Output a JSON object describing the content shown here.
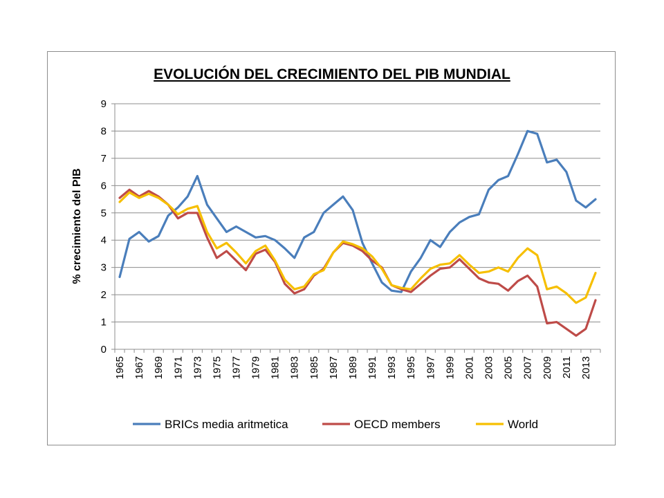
{
  "chart_data": {
    "type": "line",
    "title": "EVOLUCIÓN DEL CRECIMIENTO DEL PIB MUNDIAL",
    "ylabel": "% crecimiento del PIB",
    "xlabel": "",
    "ylim": [
      0,
      9
    ],
    "yticks": [
      0,
      1,
      2,
      3,
      4,
      5,
      6,
      7,
      8,
      9
    ],
    "grid": "horizontal",
    "legend_position": "bottom",
    "x": [
      1965,
      1966,
      1967,
      1968,
      1969,
      1970,
      1971,
      1972,
      1973,
      1974,
      1975,
      1976,
      1977,
      1978,
      1979,
      1980,
      1981,
      1982,
      1983,
      1984,
      1985,
      1986,
      1987,
      1988,
      1989,
      1990,
      1991,
      1992,
      1993,
      1994,
      1995,
      1996,
      1997,
      1998,
      1999,
      2000,
      2001,
      2002,
      2003,
      2004,
      2005,
      2006,
      2007,
      2008,
      2009,
      2010,
      2011,
      2012,
      2013,
      2014
    ],
    "xtick_labels": [
      "1965",
      "1967",
      "1969",
      "1971",
      "1973",
      "1975",
      "1977",
      "1979",
      "1981",
      "1983",
      "1985",
      "1987",
      "1989",
      "1991",
      "1993",
      "1995",
      "1997",
      "1999",
      "2001",
      "2003",
      "2005",
      "2007",
      "2009",
      "2011",
      "2013"
    ],
    "series": [
      {
        "name": "BRICs media aritmetica",
        "color": "#4a7ebb",
        "values": [
          2.65,
          4.05,
          4.3,
          3.95,
          4.15,
          4.9,
          5.2,
          5.6,
          6.35,
          5.3,
          4.8,
          4.3,
          4.5,
          4.3,
          4.1,
          4.15,
          4.0,
          3.7,
          3.35,
          4.1,
          4.3,
          5.0,
          5.3,
          5.6,
          5.1,
          3.9,
          3.15,
          2.45,
          2.15,
          2.1,
          2.85,
          3.35,
          4.0,
          3.75,
          4.3,
          4.65,
          4.85,
          4.95,
          5.85,
          6.2,
          6.35,
          7.15,
          8.0,
          7.9,
          6.85,
          6.95,
          6.5,
          5.45,
          5.2,
          5.5
        ]
      },
      {
        "name": "OECD members",
        "color": "#be4b48",
        "values": [
          5.55,
          5.85,
          5.6,
          5.8,
          5.6,
          5.3,
          4.8,
          5.0,
          5.0,
          4.1,
          3.35,
          3.6,
          3.25,
          2.9,
          3.5,
          3.65,
          3.2,
          2.4,
          2.05,
          2.2,
          2.7,
          2.95,
          3.55,
          3.9,
          3.8,
          3.6,
          3.25,
          3.0,
          2.35,
          2.2,
          2.1,
          2.4,
          2.7,
          2.95,
          3.0,
          3.3,
          2.95,
          2.6,
          2.45,
          2.4,
          2.15,
          2.5,
          2.7,
          2.3,
          0.95,
          1.0,
          0.75,
          0.5,
          0.75,
          1.8
        ]
      },
      {
        "name": "World",
        "color": "#f6bf00",
        "values": [
          5.4,
          5.75,
          5.55,
          5.7,
          5.55,
          5.3,
          4.95,
          5.15,
          5.25,
          4.3,
          3.7,
          3.9,
          3.55,
          3.15,
          3.6,
          3.8,
          3.25,
          2.55,
          2.2,
          2.3,
          2.75,
          2.9,
          3.55,
          3.95,
          3.85,
          3.7,
          3.4,
          2.95,
          2.35,
          2.25,
          2.2,
          2.6,
          2.95,
          3.1,
          3.15,
          3.45,
          3.1,
          2.8,
          2.85,
          3.0,
          2.85,
          3.35,
          3.7,
          3.45,
          2.2,
          2.3,
          2.05,
          1.7,
          1.9,
          2.8
        ]
      }
    ]
  }
}
